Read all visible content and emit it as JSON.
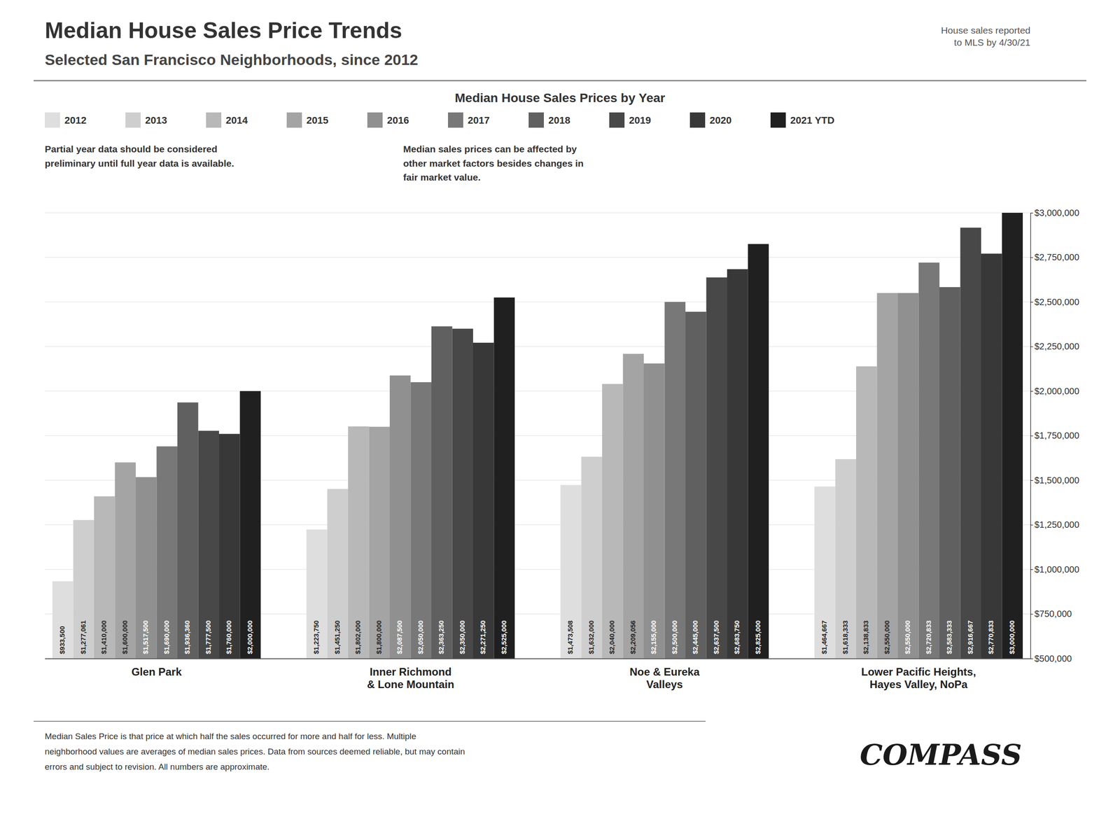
{
  "chart_data": {
    "type": "bar",
    "title": "Median House Sales Price Trends",
    "subtitle": "Selected San Francisco Neighborhoods, since 2012",
    "note": "House sales reported\nto MLS by 4/30/21",
    "chart_subtitle": "Median House Sales Prices by Year",
    "annotations": [
      "Partial year data should be considered\npreliminary until full year data is available.",
      "Median sales prices can be affected by\nother market factors besides changes in\nfair market value."
    ],
    "footer": "Median Sales Price is that price at which half the sales occurred for more and half for less. Multiple\nneighborhood values are averages of median sales prices. Data from sources deemed reliable, but may contain\nerrors and subject to revision.  All numbers are approximate.",
    "logo": "COMPASS",
    "categories": [
      "Glen Park",
      "Inner Richmond\n& Lone Mountain",
      "Noe & Eureka\nValleys",
      "Lower Pacific Heights,\nHayes Valley, NoPa"
    ],
    "series": [
      {
        "name": "2012",
        "color": "#dedede",
        "values": [
          933500,
          1223750,
          1473508,
          1464667
        ],
        "value_labels": [
          "$933,500",
          "$1,223,750",
          "$1,473,508",
          "$1,464,667"
        ]
      },
      {
        "name": "2013",
        "color": "#cecece",
        "values": [
          1277061,
          1451250,
          1632000,
          1618333
        ],
        "value_labels": [
          "$1,277,061",
          "$1,451,250",
          "$1,632,000",
          "$1,618,333"
        ]
      },
      {
        "name": "2014",
        "color": "#b8b8b8",
        "values": [
          1410000,
          1802000,
          2040000,
          2138833
        ],
        "value_labels": [
          "$1,410,000",
          "$1,802,000",
          "$2,040,000",
          "$2,138,833"
        ]
      },
      {
        "name": "2015",
        "color": "#a4a4a4",
        "values": [
          1600000,
          1800000,
          2209056,
          2550000
        ],
        "value_labels": [
          "$1,600,000",
          "$1,800,000",
          "$2,209,056",
          "$2,550,000"
        ]
      },
      {
        "name": "2016",
        "color": "#909090",
        "values": [
          1517500,
          2087500,
          2155000,
          2550000
        ],
        "value_labels": [
          "$1,517,500",
          "$2,087,500",
          "$2,155,000",
          "$2,550,000"
        ]
      },
      {
        "name": "2017",
        "color": "#787878",
        "values": [
          1690000,
          2050000,
          2500000,
          2720833
        ],
        "value_labels": [
          "$1,690,000",
          "$2,050,000",
          "$2,500,000",
          "$2,720,833"
        ]
      },
      {
        "name": "2018",
        "color": "#606060",
        "values": [
          1936360,
          2363250,
          2445000,
          2583333
        ],
        "value_labels": [
          "$1,936,360",
          "$2,363,250",
          "$2,445,000",
          "$2,583,333"
        ]
      },
      {
        "name": "2019",
        "color": "#484848",
        "values": [
          1777500,
          2350000,
          2637500,
          2916667
        ],
        "value_labels": [
          "$1,777,500",
          "$2,350,000",
          "$2,637,500",
          "$2,916,667"
        ]
      },
      {
        "name": "2020",
        "color": "#383838",
        "values": [
          1760000,
          2271250,
          2683750,
          2770833
        ],
        "value_labels": [
          "$1,760,000",
          "$2,271,250",
          "$2,683,750",
          "$2,770,833"
        ]
      },
      {
        "name": "2021 YTD",
        "color": "#202020",
        "values": [
          2000000,
          2525000,
          2825000,
          3000000
        ],
        "value_labels": [
          "$2,000,000",
          "$2,525,000",
          "$2,825,000",
          "$3,000,000"
        ]
      }
    ],
    "ylim": [
      500000,
      3000000
    ],
    "yticks": [
      {
        "value": 500000,
        "label": "$500,000"
      },
      {
        "value": 750000,
        "label": "$750,000"
      },
      {
        "value": 1000000,
        "label": "$1,000,000"
      },
      {
        "value": 1250000,
        "label": "$1,250,000"
      },
      {
        "value": 1500000,
        "label": "$1,500,000"
      },
      {
        "value": 1750000,
        "label": "$1,750,000"
      },
      {
        "value": 2000000,
        "label": "$2,000,000"
      },
      {
        "value": 2250000,
        "label": "$2,250,000"
      },
      {
        "value": 2500000,
        "label": "$2,500,000"
      },
      {
        "value": 2750000,
        "label": "$2,750,000"
      },
      {
        "value": 3000000,
        "label": "$3,000,000"
      }
    ],
    "grid": true,
    "legend": "top-left",
    "data_labels": true
  }
}
